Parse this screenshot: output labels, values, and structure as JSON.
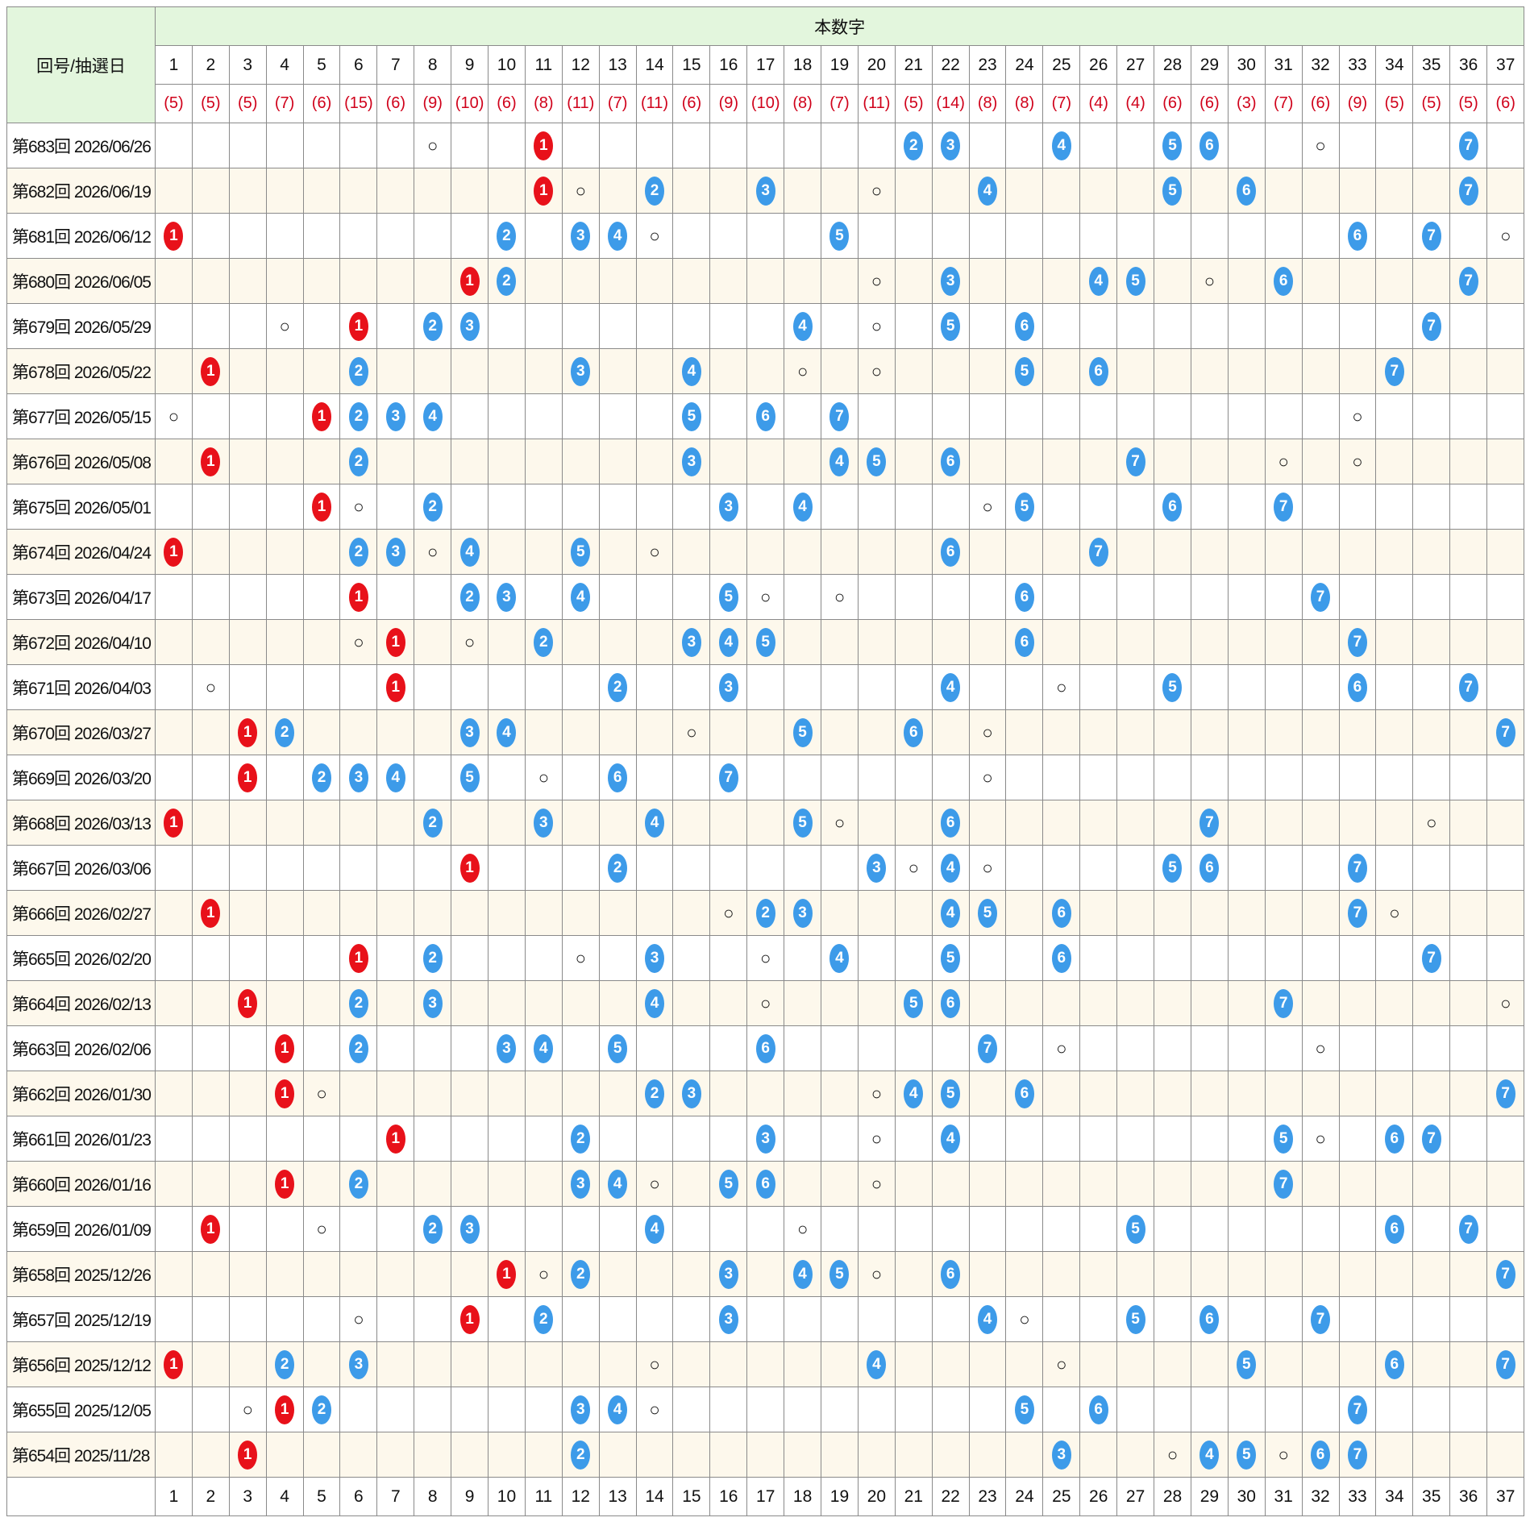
{
  "header": {
    "round_date": "回号/抽選日",
    "main_numbers": "本数字",
    "columns": [
      1,
      2,
      3,
      4,
      5,
      6,
      7,
      8,
      9,
      10,
      11,
      12,
      13,
      14,
      15,
      16,
      17,
      18,
      19,
      20,
      21,
      22,
      23,
      24,
      25,
      26,
      27,
      28,
      29,
      30,
      31,
      32,
      33,
      34,
      35,
      36,
      37
    ],
    "counts": [
      "(5)",
      "(5)",
      "(5)",
      "(7)",
      "(6)",
      "(15)",
      "(6)",
      "(9)",
      "(10)",
      "(6)",
      "(8)",
      "(11)",
      "(7)",
      "(11)",
      "(6)",
      "(9)",
      "(10)",
      "(8)",
      "(7)",
      "(11)",
      "(5)",
      "(14)",
      "(8)",
      "(8)",
      "(7)",
      "(4)",
      "(4)",
      "(6)",
      "(6)",
      "(3)",
      "(7)",
      "(6)",
      "(9)",
      "(5)",
      "(5)",
      "(5)",
      "(6)"
    ]
  },
  "marks": {
    "ranks": [
      "1",
      "2",
      "3",
      "4",
      "5",
      "6",
      "7"
    ],
    "bonus": "○"
  },
  "rows": [
    {
      "label": "第683回 2026/06/26",
      "main": [
        11,
        21,
        22,
        25,
        28,
        29,
        36
      ],
      "bonus": [
        8,
        32
      ]
    },
    {
      "label": "第682回 2026/06/19",
      "main": [
        11,
        14,
        17,
        23,
        28,
        30,
        36
      ],
      "bonus": [
        12,
        20
      ]
    },
    {
      "label": "第681回 2026/06/12",
      "main": [
        1,
        10,
        12,
        13,
        19,
        33,
        35
      ],
      "bonus": [
        14,
        37
      ]
    },
    {
      "label": "第680回 2026/06/05",
      "main": [
        9,
        10,
        22,
        26,
        27,
        31,
        36
      ],
      "bonus": [
        20,
        29
      ]
    },
    {
      "label": "第679回 2026/05/29",
      "main": [
        6,
        8,
        9,
        18,
        22,
        24,
        35
      ],
      "bonus": [
        4,
        20
      ]
    },
    {
      "label": "第678回 2026/05/22",
      "main": [
        2,
        6,
        12,
        15,
        24,
        26,
        34
      ],
      "bonus": [
        18,
        20
      ]
    },
    {
      "label": "第677回 2026/05/15",
      "main": [
        5,
        6,
        7,
        8,
        15,
        17,
        19
      ],
      "bonus": [
        1,
        33
      ]
    },
    {
      "label": "第676回 2026/05/08",
      "main": [
        2,
        6,
        15,
        19,
        20,
        22,
        27
      ],
      "bonus": [
        31,
        33
      ]
    },
    {
      "label": "第675回 2026/05/01",
      "main": [
        5,
        8,
        16,
        18,
        24,
        28,
        31
      ],
      "bonus": [
        6,
        23
      ]
    },
    {
      "label": "第674回 2026/04/24",
      "main": [
        1,
        6,
        7,
        9,
        12,
        22,
        26
      ],
      "bonus": [
        8,
        14
      ]
    },
    {
      "label": "第673回 2026/04/17",
      "main": [
        6,
        9,
        10,
        12,
        16,
        24,
        32
      ],
      "bonus": [
        17,
        19
      ]
    },
    {
      "label": "第672回 2026/04/10",
      "main": [
        7,
        11,
        15,
        16,
        17,
        24,
        33
      ],
      "bonus": [
        6,
        9
      ]
    },
    {
      "label": "第671回 2026/04/03",
      "main": [
        7,
        13,
        16,
        22,
        28,
        33,
        36
      ],
      "bonus": [
        2,
        25
      ]
    },
    {
      "label": "第670回 2026/03/27",
      "main": [
        3,
        4,
        9,
        10,
        18,
        21,
        37
      ],
      "bonus": [
        15,
        23
      ]
    },
    {
      "label": "第669回 2026/03/20",
      "main": [
        3,
        5,
        6,
        7,
        9,
        13,
        16
      ],
      "bonus": [
        11,
        23
      ]
    },
    {
      "label": "第668回 2026/03/13",
      "main": [
        1,
        8,
        11,
        14,
        18,
        22,
        29
      ],
      "bonus": [
        19,
        35
      ]
    },
    {
      "label": "第667回 2026/03/06",
      "main": [
        9,
        13,
        20,
        22,
        28,
        29,
        33
      ],
      "bonus": [
        21,
        23
      ]
    },
    {
      "label": "第666回 2026/02/27",
      "main": [
        2,
        17,
        18,
        22,
        23,
        25,
        33
      ],
      "bonus": [
        16,
        34
      ]
    },
    {
      "label": "第665回 2026/02/20",
      "main": [
        6,
        8,
        14,
        19,
        22,
        25,
        35
      ],
      "bonus": [
        12,
        17
      ]
    },
    {
      "label": "第664回 2026/02/13",
      "main": [
        3,
        6,
        8,
        14,
        21,
        22,
        31
      ],
      "bonus": [
        17,
        37
      ]
    },
    {
      "label": "第663回 2026/02/06",
      "main": [
        4,
        6,
        10,
        11,
        13,
        17,
        23
      ],
      "bonus": [
        25,
        32
      ]
    },
    {
      "label": "第662回 2026/01/30",
      "main": [
        4,
        14,
        15,
        21,
        22,
        24,
        37
      ],
      "bonus": [
        5,
        20
      ]
    },
    {
      "label": "第661回 2026/01/23",
      "main": [
        7,
        12,
        17,
        22,
        31,
        34,
        35
      ],
      "bonus": [
        20,
        32
      ]
    },
    {
      "label": "第660回 2026/01/16",
      "main": [
        4,
        6,
        12,
        13,
        16,
        17,
        31
      ],
      "bonus": [
        14,
        20
      ]
    },
    {
      "label": "第659回 2026/01/09",
      "main": [
        2,
        8,
        9,
        14,
        27,
        34,
        36
      ],
      "bonus": [
        5,
        18
      ]
    },
    {
      "label": "第658回 2025/12/26",
      "main": [
        10,
        12,
        16,
        18,
        19,
        22,
        37
      ],
      "bonus": [
        11,
        20
      ]
    },
    {
      "label": "第657回 2025/12/19",
      "main": [
        9,
        11,
        16,
        23,
        27,
        29,
        32
      ],
      "bonus": [
        6,
        24
      ]
    },
    {
      "label": "第656回 2025/12/12",
      "main": [
        1,
        4,
        6,
        20,
        30,
        34,
        37
      ],
      "bonus": [
        14,
        25
      ]
    },
    {
      "label": "第655回 2025/12/05",
      "main": [
        4,
        5,
        12,
        13,
        24,
        26,
        33
      ],
      "bonus": [
        3,
        14
      ]
    },
    {
      "label": "第654回 2025/11/28",
      "main": [
        3,
        12,
        25,
        29,
        30,
        32,
        33
      ],
      "bonus": [
        28,
        31
      ]
    }
  ]
}
